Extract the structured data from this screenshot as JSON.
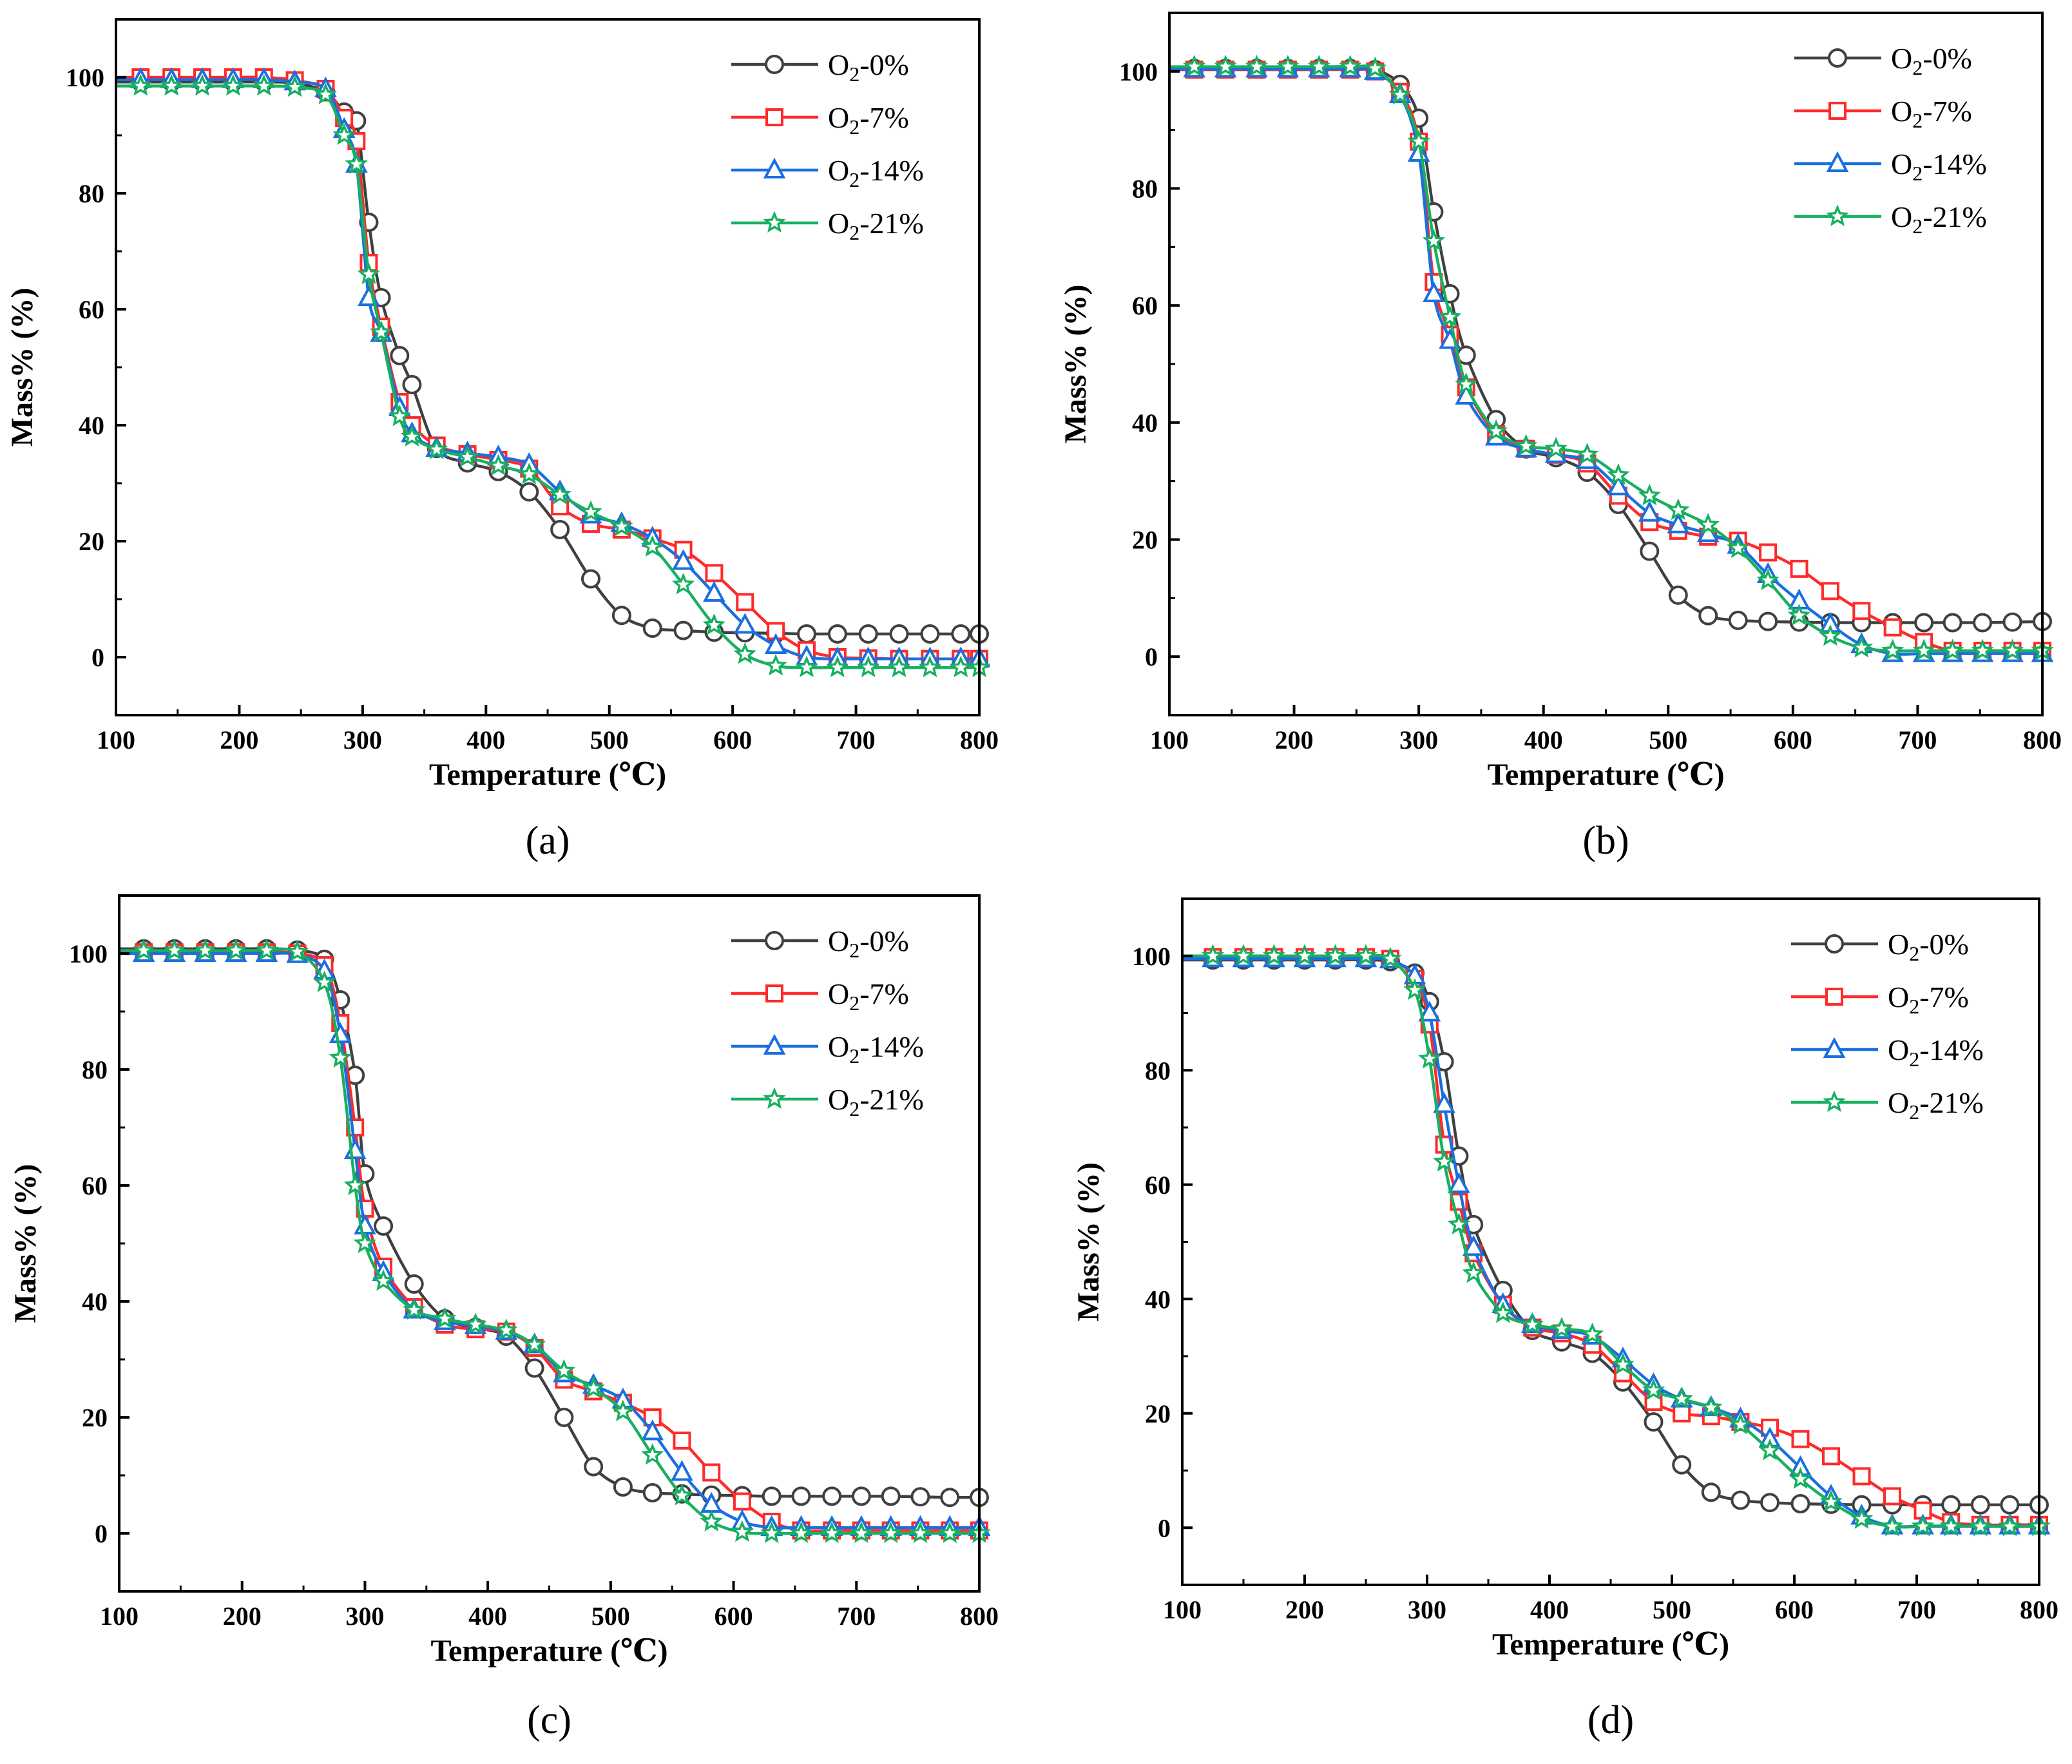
{
  "figure": {
    "series_colors": {
      "O2-0%": "#404040",
      "O2-7%": "#ff2a2a",
      "O2-14%": "#1a6fe0",
      "O2-21%": "#18b060"
    },
    "markers": {
      "O2-0%": "circle",
      "O2-7%": "square",
      "O2-14%": "triangle",
      "O2-21%": "star"
    }
  },
  "chart_data": [
    {
      "type": "line",
      "panel_label": "(a)",
      "xlabel": "Temperature (℃)",
      "ylabel": "Mass% (%)",
      "xlim": [
        100,
        800
      ],
      "ylim": [
        -10,
        110
      ],
      "xticks": [
        "100",
        "200",
        "300",
        "400",
        "500",
        "600",
        "700",
        "800"
      ],
      "yticks": [
        "0",
        "20",
        "40",
        "60",
        "80",
        "100"
      ],
      "x": [
        100,
        120,
        145,
        170,
        195,
        220,
        245,
        270,
        285,
        295,
        305,
        315,
        330,
        340,
        360,
        385,
        410,
        435,
        460,
        485,
        510,
        535,
        560,
        585,
        610,
        635,
        660,
        685,
        710,
        735,
        760,
        785,
        800
      ],
      "legend": [
        {
          "key": "O2-0%",
          "base": "O",
          "sub": "2",
          "suffix": "-0%"
        },
        {
          "key": "O2-7%",
          "base": "O",
          "sub": "2",
          "suffix": "-7%"
        },
        {
          "key": "O2-14%",
          "base": "O",
          "sub": "2",
          "suffix": "-14%"
        },
        {
          "key": "O2-21%",
          "base": "O",
          "sub": "2",
          "suffix": "-21%"
        }
      ],
      "series": [
        {
          "name": "O2-0%",
          "values": [
            99.2,
            99.2,
            99.2,
            99.2,
            99.2,
            99.2,
            99.0,
            97.5,
            94.0,
            92.5,
            75.0,
            62.0,
            52.0,
            47.0,
            36.0,
            33.5,
            32.0,
            28.5,
            22.0,
            13.5,
            7.2,
            5.0,
            4.6,
            4.3,
            4.2,
            4.1,
            4.0,
            4.0,
            4.0,
            4.0,
            4.0,
            4.0,
            4.0
          ]
        },
        {
          "name": "O2-7%",
          "values": [
            100.0,
            100.0,
            100.0,
            100.0,
            100.0,
            100.0,
            99.5,
            98.0,
            93.0,
            89.0,
            68.0,
            57.0,
            44.0,
            40.0,
            36.5,
            35.0,
            34.0,
            32.5,
            26.0,
            23.0,
            22.0,
            20.5,
            18.5,
            14.5,
            9.5,
            4.5,
            1.2,
            0.0,
            -0.2,
            -0.3,
            -0.3,
            -0.3,
            -0.3
          ]
        },
        {
          "name": "O2-14%",
          "values": [
            99.6,
            99.6,
            99.6,
            99.6,
            99.6,
            99.6,
            99.2,
            98.0,
            91.0,
            85.0,
            62.0,
            55.8,
            43.0,
            38.5,
            36.0,
            35.2,
            34.5,
            33.2,
            28.5,
            24.5,
            23.0,
            20.5,
            16.5,
            11.0,
            5.5,
            2.0,
            0.0,
            -0.3,
            -0.3,
            -0.3,
            -0.3,
            -0.3,
            -0.3
          ]
        },
        {
          "name": "O2-21%",
          "values": [
            98.5,
            98.5,
            98.5,
            98.5,
            98.5,
            98.5,
            98.3,
            97.0,
            90.0,
            85.0,
            66.0,
            56.0,
            41.5,
            38.0,
            35.8,
            34.5,
            33.0,
            31.5,
            28.0,
            25.0,
            22.5,
            19.0,
            12.5,
            5.5,
            0.5,
            -1.5,
            -1.8,
            -1.8,
            -1.8,
            -1.8,
            -1.8,
            -1.8,
            -1.8
          ]
        }
      ]
    },
    {
      "type": "line",
      "panel_label": "(b)",
      "xlabel": "Temperature (℃)",
      "ylabel": "Mass% (%)",
      "xlim": [
        100,
        800
      ],
      "ylim": [
        -10,
        110
      ],
      "xticks": [
        "100",
        "200",
        "300",
        "400",
        "500",
        "600",
        "700",
        "800"
      ],
      "yticks": [
        "0",
        "20",
        "40",
        "60",
        "80",
        "100"
      ],
      "x": [
        100,
        120,
        145,
        170,
        195,
        220,
        245,
        265,
        285,
        300,
        312,
        325,
        338,
        362,
        386,
        410,
        435,
        460,
        485,
        508,
        532,
        556,
        580,
        605,
        630,
        655,
        680,
        705,
        728,
        752,
        776,
        800
      ],
      "legend": [
        {
          "key": "O2-0%",
          "base": "O",
          "sub": "2",
          "suffix": "-0%"
        },
        {
          "key": "O2-7%",
          "base": "O",
          "sub": "2",
          "suffix": "-7%"
        },
        {
          "key": "O2-14%",
          "base": "O",
          "sub": "2",
          "suffix": "-14%"
        },
        {
          "key": "O2-21%",
          "base": "O",
          "sub": "2",
          "suffix": "-21%"
        }
      ],
      "series": [
        {
          "name": "O2-0%",
          "values": [
            100.5,
            100.5,
            100.5,
            100.5,
            100.5,
            100.5,
            100.5,
            100.3,
            97.8,
            92.0,
            76.0,
            62.0,
            51.5,
            40.5,
            35.5,
            34.0,
            31.5,
            26.0,
            18.0,
            10.5,
            7.0,
            6.2,
            6.0,
            5.9,
            5.8,
            5.8,
            5.8,
            5.8,
            5.8,
            5.8,
            5.9,
            6.0
          ]
        },
        {
          "name": "O2-7%",
          "values": [
            100.3,
            100.3,
            100.3,
            100.3,
            100.3,
            100.3,
            100.3,
            100.0,
            96.5,
            88.0,
            64.0,
            55.0,
            46.0,
            38.0,
            35.5,
            34.5,
            33.0,
            27.5,
            23.0,
            21.5,
            20.5,
            19.8,
            17.8,
            15.0,
            11.2,
            7.8,
            5.0,
            2.5,
            1.0,
            1.0,
            1.0,
            1.0
          ]
        },
        {
          "name": "O2-14%",
          "values": [
            100.4,
            100.4,
            100.4,
            100.4,
            100.4,
            100.4,
            100.4,
            100.0,
            96.0,
            86.0,
            62.0,
            54.0,
            44.5,
            37.5,
            35.5,
            34.5,
            33.5,
            29.0,
            24.5,
            22.5,
            21.0,
            19.0,
            14.0,
            9.5,
            5.5,
            2.0,
            0.5,
            0.5,
            0.5,
            0.5,
            0.5,
            0.5
          ]
        },
        {
          "name": "O2-21%",
          "values": [
            100.8,
            100.8,
            100.8,
            100.8,
            100.8,
            100.8,
            100.8,
            100.5,
            96.0,
            88.0,
            71.0,
            58.0,
            46.5,
            38.5,
            36.0,
            35.5,
            34.5,
            31.0,
            27.5,
            25.0,
            22.5,
            18.5,
            13.0,
            7.0,
            3.5,
            1.5,
            1.0,
            1.0,
            1.0,
            1.0,
            1.0,
            1.0
          ]
        }
      ]
    },
    {
      "type": "line",
      "panel_label": "(c)",
      "xlabel": "Temperature (℃)",
      "ylabel": "Mass% (%)",
      "xlim": [
        100,
        800
      ],
      "ylim": [
        -10,
        110
      ],
      "xticks": [
        "100",
        "200",
        "300",
        "400",
        "500",
        "600",
        "700",
        "800"
      ],
      "yticks": [
        "0",
        "20",
        "40",
        "60",
        "80",
        "100"
      ],
      "x": [
        100,
        120,
        145,
        170,
        195,
        220,
        245,
        267,
        280,
        292,
        300,
        315,
        340,
        365,
        390,
        415,
        438,
        462,
        486,
        510,
        534,
        558,
        582,
        607,
        631,
        655,
        680,
        704,
        728,
        752,
        776,
        800
      ],
      "legend": [
        {
          "key": "O2-0%",
          "base": "O",
          "sub": "2",
          "suffix": "-0%"
        },
        {
          "key": "O2-7%",
          "base": "O",
          "sub": "2",
          "suffix": "-7%"
        },
        {
          "key": "O2-14%",
          "base": "O",
          "sub": "2",
          "suffix": "-14%"
        },
        {
          "key": "O2-21%",
          "base": "O",
          "sub": "2",
          "suffix": "-21%"
        }
      ],
      "series": [
        {
          "name": "O2-0%",
          "values": [
            100.8,
            100.8,
            100.8,
            100.8,
            100.8,
            100.8,
            100.6,
            99.0,
            92.0,
            79.0,
            62.0,
            53.0,
            43.0,
            37.0,
            35.5,
            34.0,
            28.5,
            20.0,
            11.5,
            8.0,
            7.0,
            6.8,
            6.6,
            6.5,
            6.4,
            6.4,
            6.4,
            6.4,
            6.4,
            6.3,
            6.2,
            6.2
          ]
        },
        {
          "name": "O2-7%",
          "values": [
            100.2,
            100.2,
            100.2,
            100.2,
            100.2,
            100.2,
            100.0,
            98.0,
            88.0,
            70.0,
            56.0,
            46.0,
            39.0,
            36.0,
            35.2,
            34.8,
            32.0,
            26.5,
            24.5,
            22.5,
            20.0,
            16.0,
            10.5,
            5.5,
            2.0,
            0.5,
            0.5,
            0.5,
            0.5,
            0.5,
            0.5,
            0.5
          ]
        },
        {
          "name": "O2-14%",
          "values": [
            100.0,
            100.0,
            100.0,
            100.0,
            100.0,
            100.0,
            99.8,
            97.0,
            86.0,
            66.0,
            53.0,
            45.0,
            38.5,
            36.5,
            35.8,
            34.8,
            32.5,
            27.5,
            25.5,
            23.0,
            17.5,
            10.5,
            5.0,
            2.0,
            1.0,
            1.0,
            1.0,
            1.0,
            1.0,
            1.0,
            1.0,
            1.0
          ]
        },
        {
          "name": "O2-21%",
          "values": [
            100.5,
            100.5,
            100.5,
            100.5,
            100.5,
            100.5,
            100.3,
            95.0,
            82.0,
            60.0,
            50.0,
            43.5,
            38.5,
            37.0,
            36.0,
            35.0,
            32.5,
            28.0,
            25.0,
            21.0,
            13.5,
            6.5,
            2.0,
            0.2,
            0.0,
            0.0,
            0.0,
            0.0,
            0.0,
            0.0,
            0.0,
            0.0
          ]
        }
      ]
    },
    {
      "type": "line",
      "panel_label": "(d)",
      "xlabel": "Temperature (℃)",
      "ylabel": "Mass% (%)",
      "xlim": [
        100,
        800
      ],
      "ylim": [
        -10,
        110
      ],
      "xticks": [
        "100",
        "200",
        "300",
        "400",
        "500",
        "600",
        "700",
        "800"
      ],
      "yticks": [
        "0",
        "20",
        "40",
        "60",
        "80",
        "100"
      ],
      "x": [
        100,
        125,
        150,
        175,
        200,
        225,
        250,
        270,
        290,
        302,
        314,
        326,
        338,
        362,
        386,
        410,
        435,
        460,
        485,
        508,
        532,
        556,
        580,
        605,
        630,
        655,
        680,
        705,
        728,
        752,
        776,
        800
      ],
      "legend": [
        {
          "key": "O2-0%",
          "base": "O",
          "sub": "2",
          "suffix": "-0%"
        },
        {
          "key": "O2-7%",
          "base": "O",
          "sub": "2",
          "suffix": "-7%"
        },
        {
          "key": "O2-14%",
          "base": "O",
          "sub": "2",
          "suffix": "-14%"
        },
        {
          "key": "O2-21%",
          "base": "O",
          "sub": "2",
          "suffix": "-21%"
        }
      ],
      "series": [
        {
          "name": "O2-0%",
          "values": [
            99.3,
            99.3,
            99.3,
            99.3,
            99.3,
            99.3,
            99.3,
            99.0,
            97.0,
            92.0,
            81.5,
            65.0,
            53.0,
            41.5,
            34.5,
            32.5,
            30.5,
            25.5,
            18.5,
            11.0,
            6.2,
            4.8,
            4.4,
            4.2,
            4.1,
            4.0,
            4.0,
            4.0,
            4.0,
            4.0,
            4.0,
            4.0
          ]
        },
        {
          "name": "O2-7%",
          "values": [
            99.8,
            99.8,
            99.8,
            99.8,
            99.8,
            99.8,
            99.8,
            99.5,
            96.0,
            88.0,
            67.0,
            57.0,
            48.0,
            39.0,
            35.0,
            34.0,
            32.0,
            27.0,
            22.0,
            20.0,
            19.5,
            18.5,
            17.5,
            15.5,
            12.5,
            9.0,
            5.5,
            3.0,
            1.0,
            0.5,
            0.5,
            0.5
          ]
        },
        {
          "name": "O2-14%",
          "values": [
            99.5,
            99.5,
            99.5,
            99.5,
            99.5,
            99.5,
            99.5,
            99.3,
            96.5,
            90.0,
            74.0,
            60.0,
            49.0,
            39.0,
            35.5,
            34.5,
            33.5,
            29.5,
            25.0,
            22.5,
            21.0,
            19.0,
            15.5,
            10.5,
            5.5,
            2.0,
            0.3,
            0.3,
            0.3,
            0.3,
            0.3,
            0.3
          ]
        },
        {
          "name": "O2-21%",
          "values": [
            100.0,
            100.0,
            100.0,
            100.0,
            100.0,
            100.0,
            100.0,
            99.5,
            94.0,
            82.0,
            64.0,
            53.0,
            44.5,
            37.5,
            35.5,
            34.8,
            33.8,
            28.5,
            24.0,
            22.5,
            21.0,
            18.0,
            13.5,
            8.5,
            4.5,
            1.5,
            0.2,
            0.2,
            0.2,
            0.2,
            0.2,
            0.2
          ]
        }
      ]
    }
  ]
}
